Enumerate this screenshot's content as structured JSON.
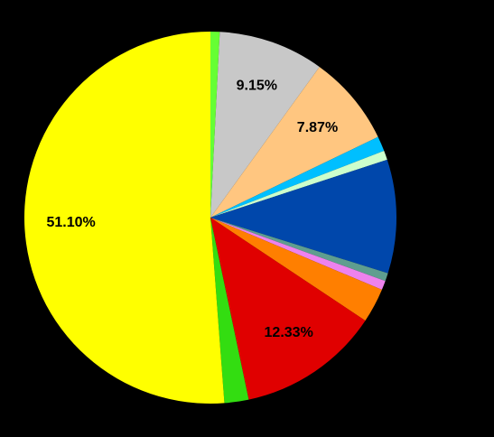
{
  "chart_data": {
    "type": "pie",
    "values": [
      0.8,
      9.15,
      7.87,
      1.3,
      0.8,
      9.86,
      0.7,
      0.8,
      3.0,
      12.33,
      2.1,
      51.1
    ],
    "value_labels": [
      null,
      "9.15%",
      "7.87%",
      null,
      null,
      null,
      null,
      null,
      null,
      "12.33%",
      null,
      "51.10%"
    ],
    "colors": [
      "#66ff33",
      "#c8c8c8",
      "#ffc680",
      "#00bfff",
      "#ccffcc",
      "#0047ab",
      "#5f9e8f",
      "#ee82ee",
      "#ff7f00",
      "#e00000",
      "#33dd11",
      "#ffff00"
    ]
  }
}
